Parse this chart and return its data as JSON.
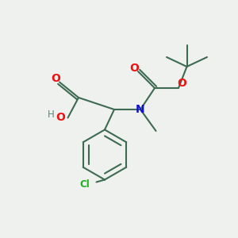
{
  "background_color": "#eff1ef",
  "bond_color": "#3d6b52",
  "bond_width": 1.5,
  "atom_colors": {
    "O": "#ee1111",
    "N": "#1111cc",
    "Cl": "#22aa22",
    "C": "#3d6b52",
    "H": "#5a8a7a"
  },
  "figsize": [
    3.0,
    3.0
  ],
  "dpi": 100
}
